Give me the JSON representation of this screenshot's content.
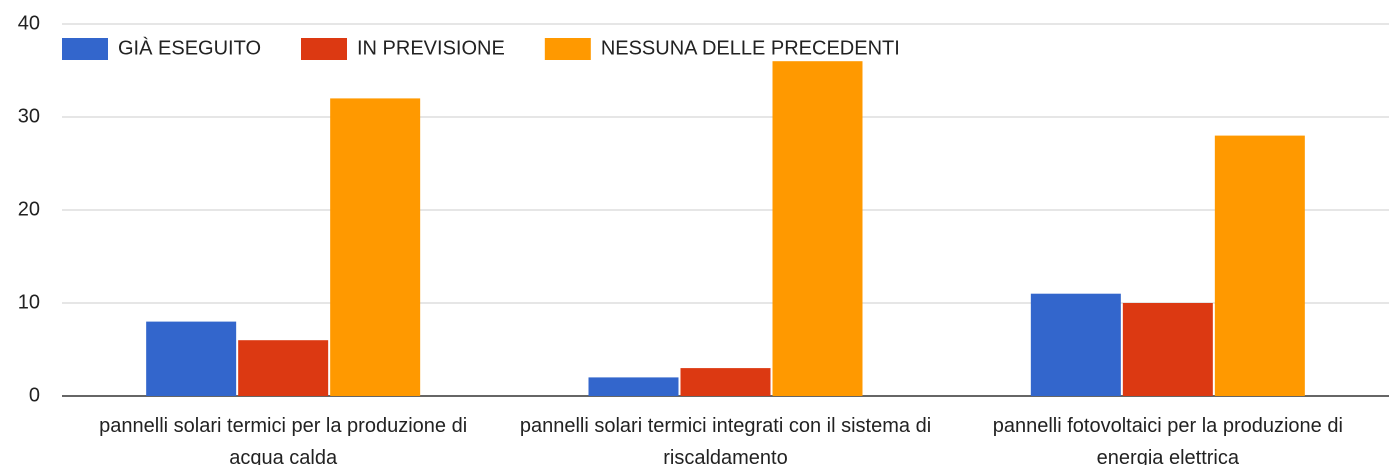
{
  "chart_data": {
    "type": "bar",
    "categories": [
      "pannelli solari termici per la produzione di acqua calda",
      "pannelli solari termici integrati con il sistema di riscaldamento",
      "pannelli fotovoltaici per la produzione di energia elettrica"
    ],
    "series": [
      {
        "name": "GIÀ ESEGUITO",
        "color": "#3366cc",
        "values": [
          8,
          2,
          11
        ]
      },
      {
        "name": "IN PREVISIONE",
        "color": "#dc3912",
        "values": [
          6,
          3,
          10
        ]
      },
      {
        "name": "NESSUNA DELLE PRECEDENTI",
        "color": "#ff9900",
        "values": [
          32,
          36,
          28
        ]
      }
    ],
    "ylim": [
      0,
      40
    ],
    "yticks": [
      0,
      10,
      20,
      30,
      40
    ],
    "grid": true,
    "legend": "top"
  }
}
